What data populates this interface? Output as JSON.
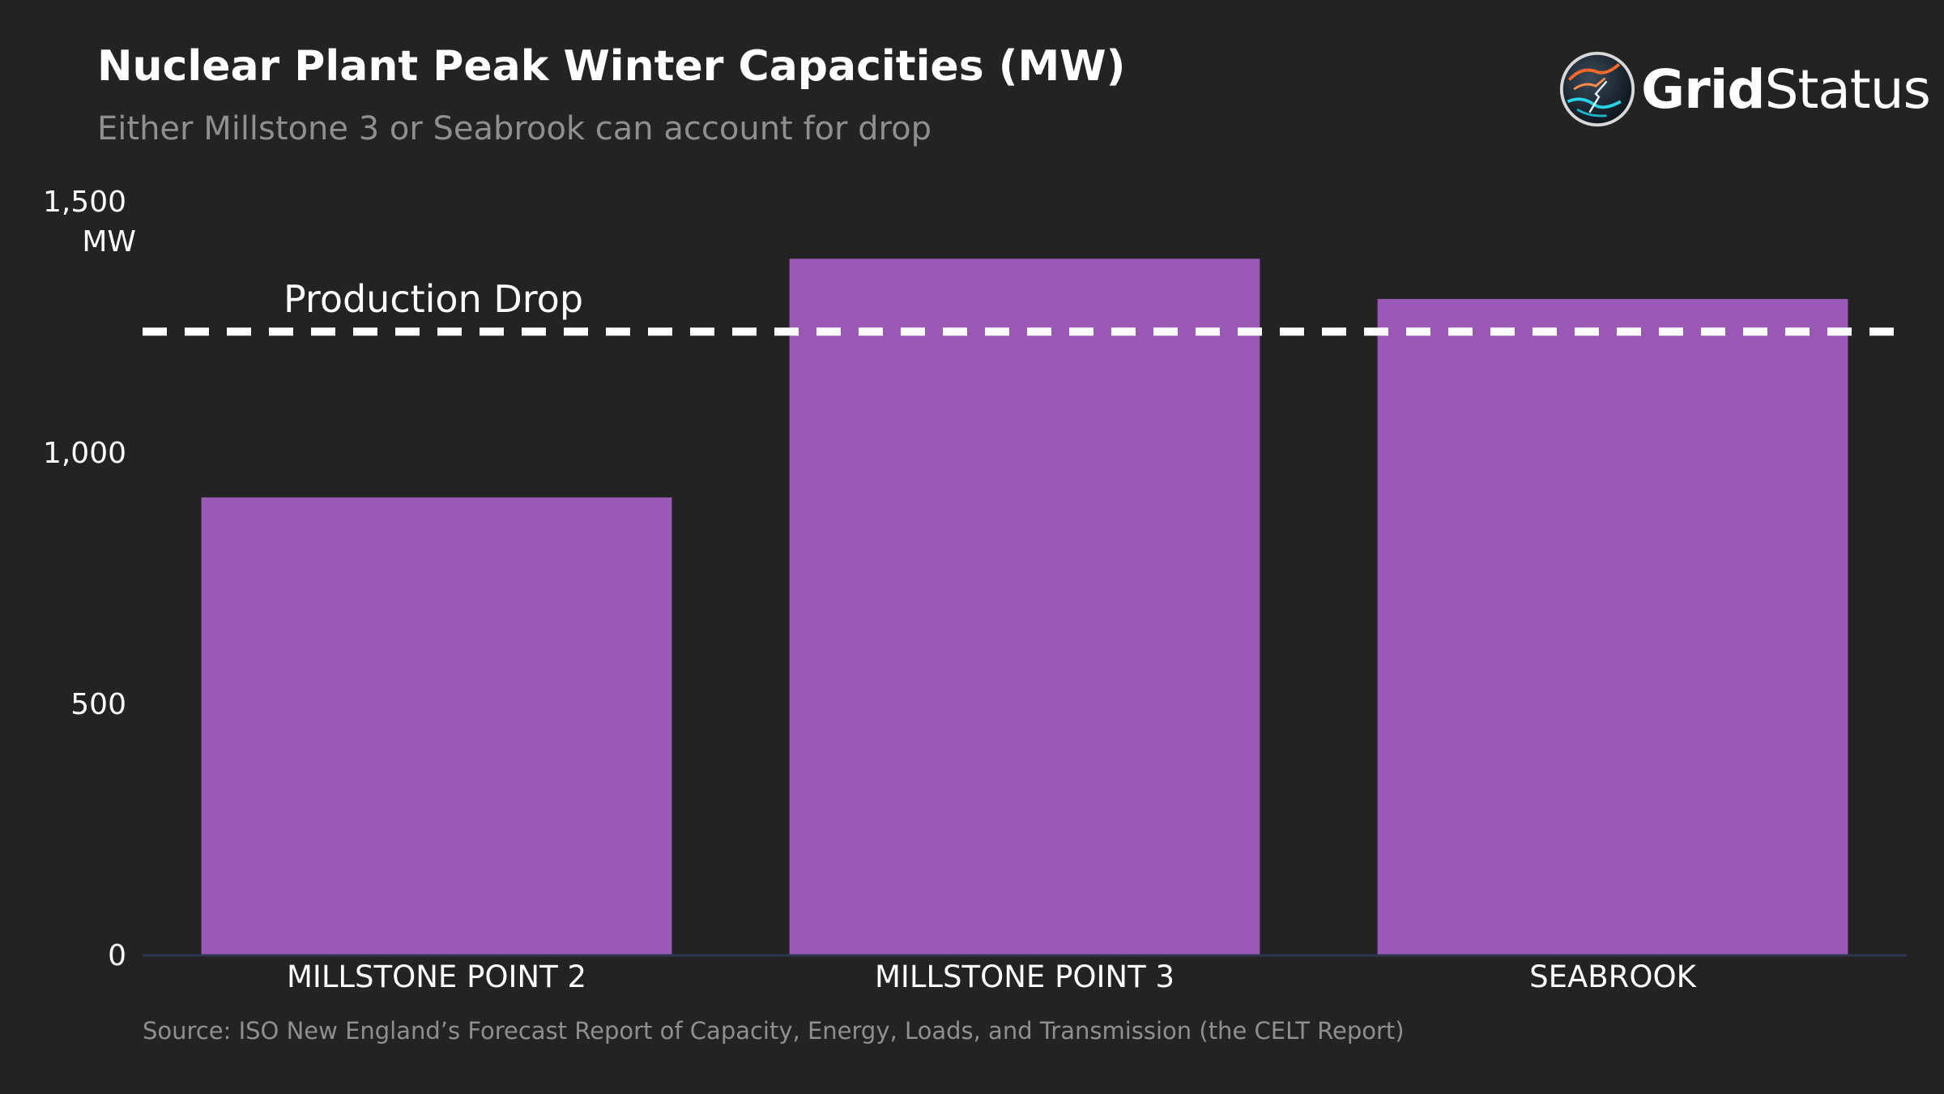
{
  "header": {
    "title": "Nuclear Plant Peak Winter Capacities (MW)",
    "subtitle": "Either Millstone 3 or Seabrook can account for drop"
  },
  "logo": {
    "text_bold": "Grid",
    "text_regular": "Status"
  },
  "source": "Source: ISO New England’s Forecast Report of Capacity, Energy, Loads, and Transmission (the CELT Report)",
  "colors": {
    "background": "#232323",
    "bar": "#9b59b6",
    "reference_line": "#ffffff",
    "axis_line": "#2e3550"
  },
  "chart_data": {
    "type": "bar",
    "categories": [
      "MILLSTONE POINT 2",
      "MILLSTONE POINT 3",
      "SEABROOK"
    ],
    "values": [
      910,
      1385,
      1305
    ],
    "ylabel": "MW",
    "ylim": [
      0,
      1500
    ],
    "yticks": [
      0,
      500,
      1000,
      1500
    ],
    "ytick_labels": [
      "0",
      "500",
      "1,000",
      "1,500"
    ],
    "grid": false,
    "reference_line": {
      "label": "Production Drop",
      "value": 1240,
      "style": "dashed"
    }
  }
}
